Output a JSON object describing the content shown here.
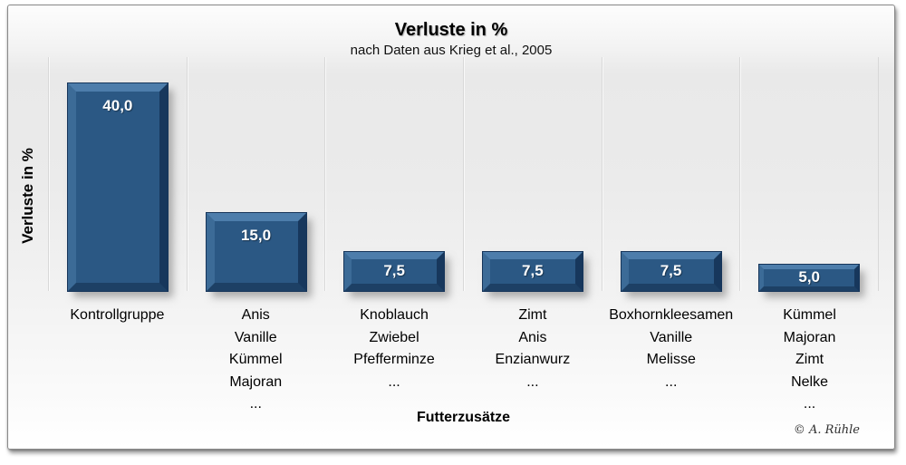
{
  "copyright": "© A. Rühle",
  "chart_data": {
    "type": "bar",
    "title": "Verluste in %",
    "subtitle": "nach Daten aus Krieg et al., 2005",
    "ylabel": "Verluste in %",
    "xlabel": "Futterzusätze",
    "ylim": [
      0,
      45
    ],
    "grid": "vertical-category-separators",
    "legend": "none",
    "bar_color": "#2b5884",
    "bar_bevel_highlight": "#4d7dab",
    "bar_bevel_shadow": "#17375c",
    "value_label_color": "#ffffff",
    "categories": [
      "Kontrollgruppe",
      "Anis\nVanille\nKümmel\nMajoran\n...",
      "Knoblauch\nZwiebel\nPfefferminze\n...",
      "Zimt\nAnis\nEnzianwurz\n...",
      "Boxhornkleesamen\nVanille\nMelisse\n...",
      "Kümmel\nMajoran\nZimt\nNelke\n..."
    ],
    "values": [
      40.0,
      15.0,
      7.5,
      7.5,
      7.5,
      5.0
    ],
    "value_labels": [
      "40,0",
      "15,0",
      "7,5",
      "7,5",
      "7,5",
      "5,0"
    ]
  }
}
